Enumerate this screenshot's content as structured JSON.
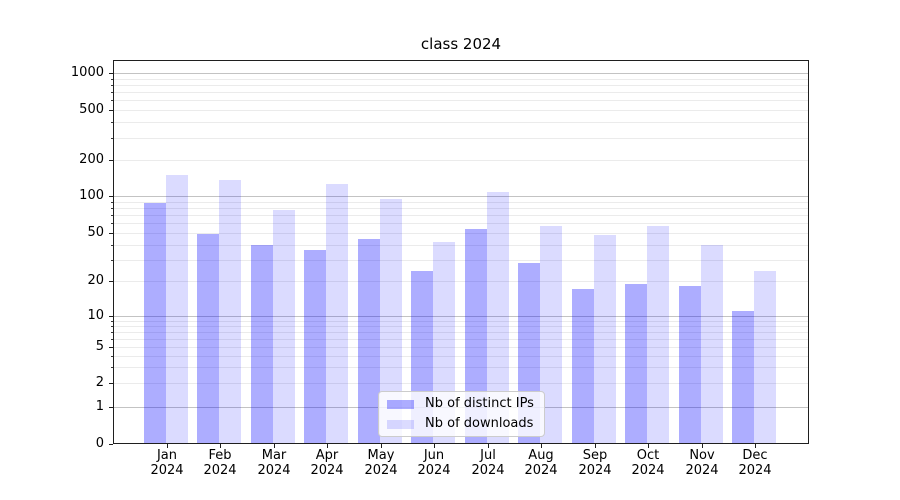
{
  "title": "class 2024",
  "legend": {
    "items": [
      {
        "label": "Nb of distinct IPs",
        "color": "rgba(0,0,255,0.32)"
      },
      {
        "label": "Nb of downloads",
        "color": "rgba(0,0,255,0.14)"
      }
    ]
  },
  "axes": {
    "y_tick_labels": [
      "0",
      "1",
      "2",
      "5",
      "10",
      "20",
      "50",
      "100",
      "200",
      "500",
      "1000"
    ],
    "x_months": [
      "Jan",
      "Feb",
      "Mar",
      "Apr",
      "May",
      "Jun",
      "Jul",
      "Aug",
      "Sep",
      "Oct",
      "Nov",
      "Dec"
    ],
    "x_year": "2024"
  },
  "chart_data": {
    "type": "bar",
    "title": "class 2024",
    "categories": [
      "Jan 2024",
      "Feb 2024",
      "Mar 2024",
      "Apr 2024",
      "May 2024",
      "Jun 2024",
      "Jul 2024",
      "Aug 2024",
      "Sep 2024",
      "Oct 2024",
      "Nov 2024",
      "Dec 2024"
    ],
    "series": [
      {
        "name": "Nb of distinct IPs",
        "values": [
          88,
          49,
          40,
          36,
          45,
          24,
          54,
          28,
          17,
          19,
          18,
          11
        ]
      },
      {
        "name": "Nb of downloads",
        "values": [
          150,
          135,
          77,
          125,
          95,
          42,
          108,
          57,
          48,
          57,
          40,
          24
        ]
      }
    ],
    "bar_colors": [
      "rgba(0,0,255,0.32)",
      "rgba(0,0,255,0.14)"
    ],
    "y_scale": "symlog (log above 1, linear 0-1)",
    "y_ticks": [
      0,
      1,
      2,
      5,
      10,
      20,
      50,
      100,
      200,
      500,
      1000
    ],
    "ylim": [
      0,
      1200
    ],
    "grid": "horizontal major (powers of 10) + minor",
    "legend_position": "lower center"
  }
}
